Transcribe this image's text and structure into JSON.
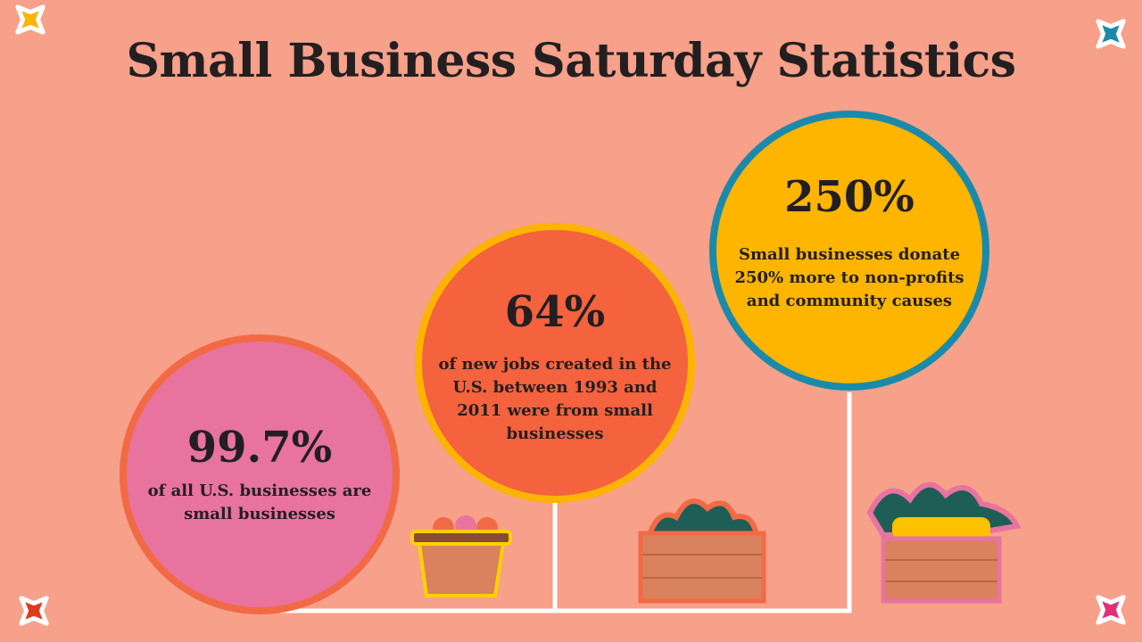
{
  "header": {
    "title": "Small Business Saturday Statistics"
  },
  "stats": [
    {
      "value": "99.7%",
      "description": "of all U.S. businesses are small businesses"
    },
    {
      "value": "64%",
      "description": "of new jobs created in the U.S. between 1993 and 2011 were from small businesses"
    },
    {
      "value": "250%",
      "description": "Small businesses donate 250% more to non-profits and community causes"
    }
  ]
}
